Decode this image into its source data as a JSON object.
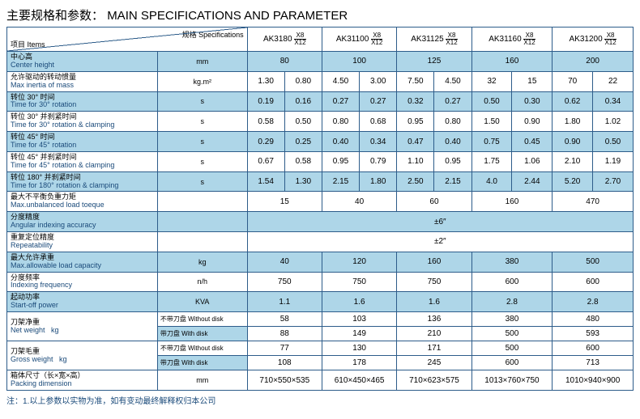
{
  "title_cn": "主要规格和参数：",
  "title_en": "MAIN SPECIFICATIONS AND PARAMETER",
  "header": {
    "specs": "规格 Specifications",
    "items": "项目 Items"
  },
  "models": [
    "AK3180",
    "AK31100",
    "AK31125",
    "AK31160",
    "AK31200"
  ],
  "model_variant_top": "X8",
  "model_variant_bot": "X12",
  "rows": [
    {
      "key": "center_height",
      "cn": "中心高",
      "en": "Center height",
      "unit": "mm",
      "blue": true,
      "cells": [
        "80",
        "100",
        "125",
        "160",
        "200"
      ],
      "span": 2
    },
    {
      "key": "max_inertia",
      "cn": "允许驱动的转动惯量",
      "en": "Max inertia of mass",
      "unit": "kg.m²",
      "cells": [
        "1.30",
        "0.80",
        "4.50",
        "3.00",
        "7.50",
        "4.50",
        "32",
        "15",
        "70",
        "22"
      ]
    },
    {
      "key": "time30",
      "cn": "转位 30° 时间",
      "en": "Time for 30° rotation",
      "unit": "s",
      "blue": true,
      "cells": [
        "0.19",
        "0.16",
        "0.27",
        "0.27",
        "0.32",
        "0.27",
        "0.50",
        "0.30",
        "0.62",
        "0.34"
      ]
    },
    {
      "key": "time30c",
      "cn": "转位 30° 并刹紧时间",
      "en": "Time for 30° rotation & clamping",
      "unit": "s",
      "cells": [
        "0.58",
        "0.50",
        "0.80",
        "0.68",
        "0.95",
        "0.80",
        "1.50",
        "0.90",
        "1.80",
        "1.02"
      ]
    },
    {
      "key": "time45",
      "cn": "转位 45° 时间",
      "en": "Time for 45° rotation",
      "unit": "s",
      "blue": true,
      "cells": [
        "0.29",
        "0.25",
        "0.40",
        "0.34",
        "0.47",
        "0.40",
        "0.75",
        "0.45",
        "0.90",
        "0.50"
      ]
    },
    {
      "key": "time45c",
      "cn": "转位 45° 并刹紧时间",
      "en": "Time for 45° rotation & clamping",
      "unit": "s",
      "cells": [
        "0.67",
        "0.58",
        "0.95",
        "0.79",
        "1.10",
        "0.95",
        "1.75",
        "1.06",
        "2.10",
        "1.19"
      ]
    },
    {
      "key": "time180c",
      "cn": "转位 180° 并刹紧时间",
      "en": "Time for 180° rotation & clamping",
      "unit": "s",
      "blue": true,
      "cells": [
        "1.54",
        "1.30",
        "2.15",
        "1.80",
        "2.50",
        "2.15",
        "4.0",
        "2.44",
        "5.20",
        "2.70"
      ]
    },
    {
      "key": "unbalanced",
      "cn": "最大不平衡负重力矩",
      "en": "Max.unbalanced load toeque",
      "unit": "",
      "cells": [
        "15",
        "40",
        "60",
        "160",
        "470"
      ],
      "span": 2
    },
    {
      "key": "angular",
      "cn": "分度精度",
      "en": "Angular indexing accuracy",
      "unit": "",
      "blue": true,
      "cells": [
        "±6″"
      ],
      "span": 10
    },
    {
      "key": "repeat",
      "cn": "重复定位精度",
      "en": "Repeatability",
      "unit": "",
      "cells": [
        "±2″"
      ],
      "span": 10
    },
    {
      "key": "maxload",
      "cn": "最大允许承重",
      "en": "Max.allowable load capacity",
      "unit": "kg",
      "blue": true,
      "cells": [
        "40",
        "120",
        "160",
        "380",
        "500"
      ],
      "span": 2
    },
    {
      "key": "indexfreq",
      "cn": "分度频率",
      "en": "Indexing frequency",
      "unit": "n/h",
      "cells": [
        "750",
        "750",
        "750",
        "600",
        "600"
      ],
      "span": 2
    },
    {
      "key": "startoff",
      "cn": "起动功率",
      "en": "Start-off power",
      "unit": "KVA",
      "blue": true,
      "cells": [
        "1.1",
        "1.6",
        "1.6",
        "2.8",
        "2.8"
      ],
      "span": 2
    }
  ],
  "netweight": {
    "cn": "刀架净重",
    "en": "Net weight",
    "unit": "kg",
    "sub1_label": "不带刀盘 Without disk",
    "sub1": [
      "58",
      "103",
      "136",
      "380",
      "480"
    ],
    "sub2_label": "带刀盘 With disk",
    "sub2": [
      "88",
      "149",
      "210",
      "500",
      "593"
    ]
  },
  "grossweight": {
    "cn": "刀架毛重",
    "en": "Gross weight",
    "unit": "kg",
    "sub1_label": "不带刀盘 Without disk",
    "sub1": [
      "77",
      "130",
      "171",
      "500",
      "600"
    ],
    "sub2_label": "带刀盘 With disk",
    "sub2": [
      "108",
      "178",
      "245",
      "600",
      "713"
    ]
  },
  "packing": {
    "cn": "箱体尺寸（长×宽×高）",
    "en": "Packing dimension",
    "unit": "mm",
    "cells": [
      "710×550×535",
      "610×450×465",
      "710×623×575",
      "1013×760×750",
      "1010×940×900"
    ]
  },
  "note": "注：1.以上参数以实物为准，如有变动最终解释权归本公司"
}
